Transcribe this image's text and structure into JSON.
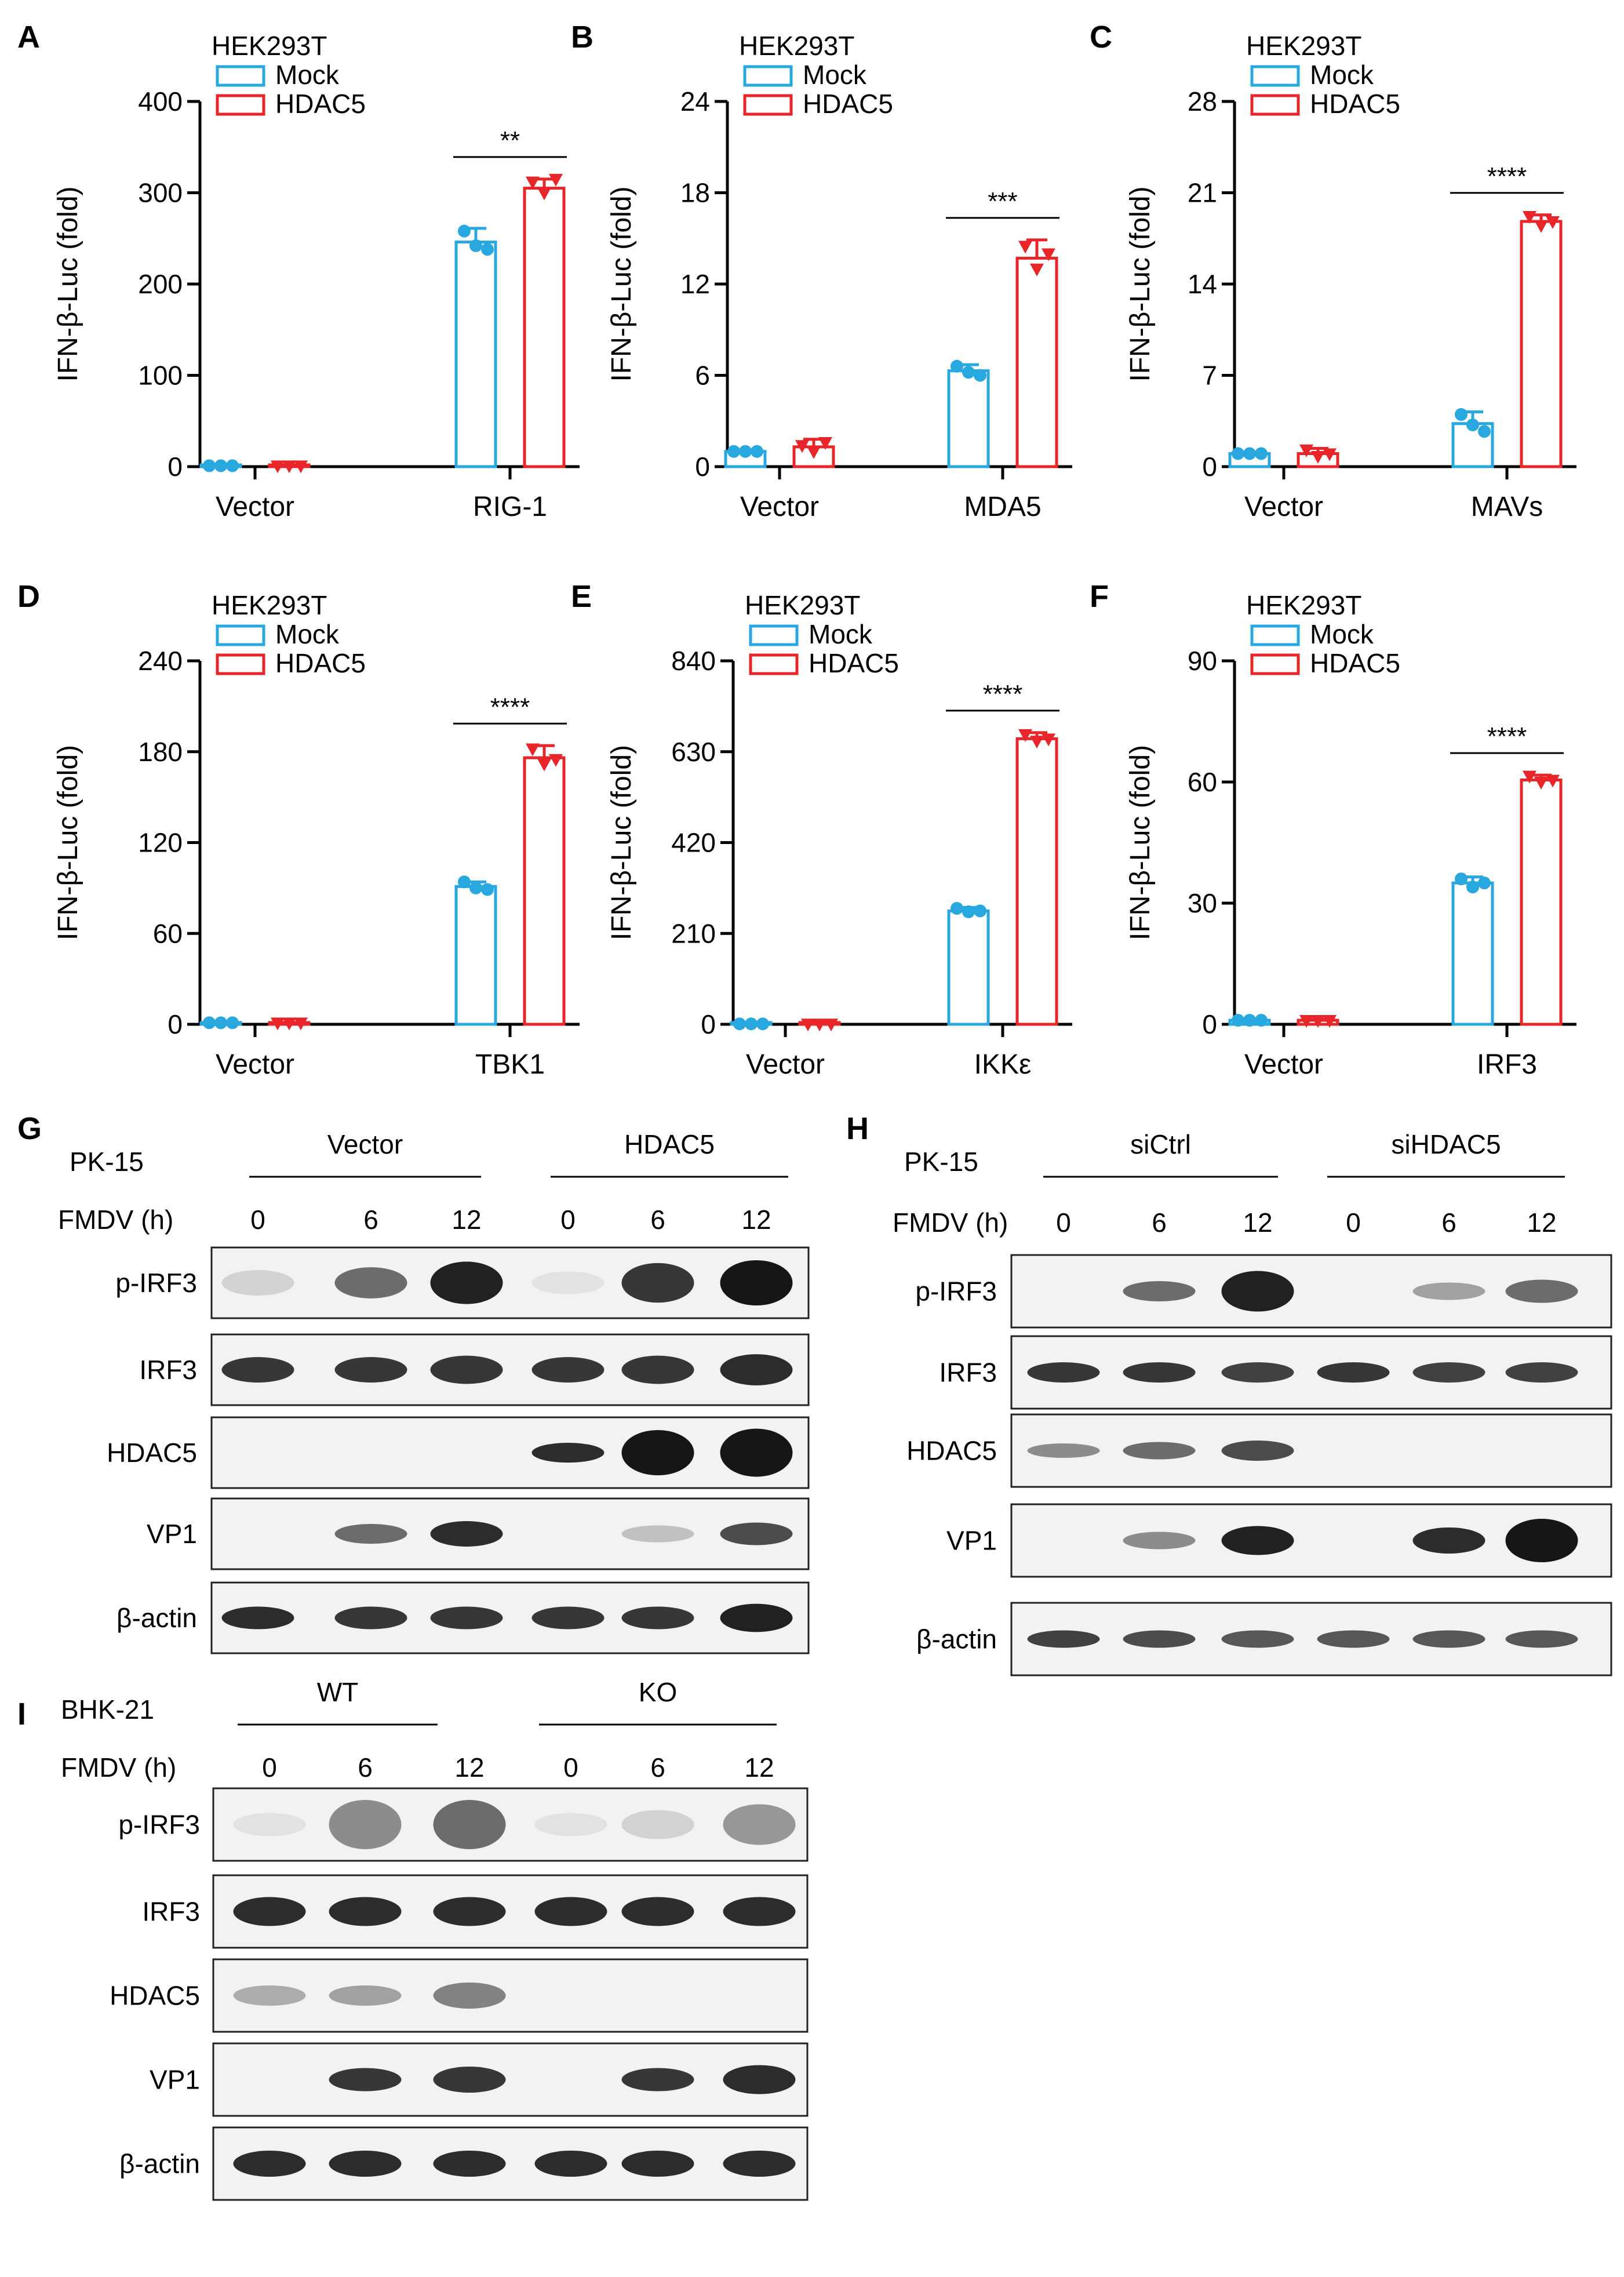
{
  "legend": {
    "header": "HEK293T",
    "mock": "Mock",
    "hdac5": "HDAC5"
  },
  "colors": {
    "mock": "#29A8E0",
    "hdac5": "#E8262A",
    "axis": "#000000"
  },
  "chart_data": [
    {
      "panel": "A",
      "type": "bar",
      "ylabel": "IFN-β-Luc (fold)",
      "categories": [
        "Vector",
        "RIG-1"
      ],
      "yticks": [
        "0",
        "100",
        "200",
        "300",
        "400"
      ],
      "ylim": [
        0,
        400
      ],
      "legend_title": "HEK293T",
      "series": [
        {
          "name": "Mock",
          "values": [
            1,
            246
          ],
          "errors": [
            0,
            15
          ],
          "points": [
            [
              1,
              1,
              1
            ],
            [
              258,
              242,
              238
            ]
          ]
        },
        {
          "name": "HDAC5",
          "values": [
            1,
            305
          ],
          "errors": [
            0,
            10
          ],
          "points": [
            [
              1,
              1,
              1
            ],
            [
              312,
              300,
              315
            ]
          ]
        }
      ],
      "significance": "**"
    },
    {
      "panel": "B",
      "type": "bar",
      "ylabel": "IFN-β-Luc (fold)",
      "categories": [
        "Vector",
        "MDA5"
      ],
      "yticks": [
        "0",
        "6",
        "12",
        "18",
        "24"
      ],
      "ylim": [
        0,
        24
      ],
      "legend_title": "HEK293T",
      "series": [
        {
          "name": "Mock",
          "values": [
            1,
            6.3
          ],
          "errors": [
            0.1,
            0.4
          ],
          "points": [
            [
              1,
              1,
              1
            ],
            [
              6.6,
              6.2,
              6.0
            ]
          ]
        },
        {
          "name": "HDAC5",
          "values": [
            1.3,
            13.7
          ],
          "errors": [
            0.5,
            1.2
          ],
          "points": [
            [
              1.4,
              1.0,
              1.6
            ],
            [
              14.5,
              13.0,
              14.0
            ]
          ]
        }
      ],
      "significance": "***"
    },
    {
      "panel": "C",
      "type": "bar",
      "ylabel": "IFN-β-Luc (fold)",
      "categories": [
        "Vector",
        "MAVs"
      ],
      "yticks": [
        "0",
        "7",
        "14",
        "21",
        "28"
      ],
      "ylim": [
        0,
        28
      ],
      "legend_title": "HEK293T",
      "series": [
        {
          "name": "Mock",
          "values": [
            1,
            3.3
          ],
          "errors": [
            0.1,
            0.9
          ],
          "points": [
            [
              1,
              1,
              1
            ],
            [
              4.0,
              3.2,
              2.7
            ]
          ]
        },
        {
          "name": "HDAC5",
          "values": [
            1,
            18.8
          ],
          "errors": [
            0.4,
            0.5
          ],
          "points": [
            [
              1.3,
              0.8,
              1.0
            ],
            [
              19.2,
              18.5,
              18.8
            ]
          ]
        }
      ],
      "significance": "****"
    },
    {
      "panel": "D",
      "type": "bar",
      "ylabel": "IFN-β-Luc (fold)",
      "categories": [
        "Vector",
        "TBK1"
      ],
      "yticks": [
        "0",
        "60",
        "120",
        "180",
        "240"
      ],
      "ylim": [
        0,
        240
      ],
      "legend_title": "HEK293T",
      "series": [
        {
          "name": "Mock",
          "values": [
            1,
            91
          ],
          "errors": [
            0,
            3
          ],
          "points": [
            [
              1,
              1,
              1
            ],
            [
              94,
              90,
              89
            ]
          ]
        },
        {
          "name": "HDAC5",
          "values": [
            1,
            176
          ],
          "errors": [
            0,
            8
          ],
          "points": [
            [
              1,
              1,
              1
            ],
            [
              182,
              172,
              175
            ]
          ]
        }
      ],
      "significance": "****"
    },
    {
      "panel": "E",
      "type": "bar",
      "ylabel": "IFN-β-Luc (fold)",
      "categories": [
        "Vector",
        "IKKε"
      ],
      "yticks": [
        "0",
        "210",
        "420",
        "630",
        "840"
      ],
      "ylim": [
        0,
        840
      ],
      "legend_title": "HEK293T",
      "series": [
        {
          "name": "Mock",
          "values": [
            1,
            262
          ],
          "errors": [
            0,
            8
          ],
          "points": [
            [
              1,
              1,
              1
            ],
            [
              268,
              260,
              262
            ]
          ]
        },
        {
          "name": "HDAC5",
          "values": [
            1,
            660
          ],
          "errors": [
            0,
            14
          ],
          "points": [
            [
              1,
              1,
              1
            ],
            [
              670,
              655,
              660
            ]
          ]
        }
      ],
      "significance": "****"
    },
    {
      "panel": "F",
      "type": "bar",
      "ylabel": "IFN-β-Luc (fold)",
      "categories": [
        "Vector",
        "IRF3"
      ],
      "yticks": [
        "0",
        "30",
        "60",
        "90"
      ],
      "ylim": [
        0,
        90
      ],
      "legend_title": "HEK293T",
      "series": [
        {
          "name": "Mock",
          "values": [
            1,
            35
          ],
          "errors": [
            0.2,
            1.5
          ],
          "points": [
            [
              1,
              1,
              1
            ],
            [
              36,
              34,
              35
            ]
          ]
        },
        {
          "name": "HDAC5",
          "values": [
            1,
            60.5
          ],
          "errors": [
            0.2,
            1.2
          ],
          "points": [
            [
              1,
              1,
              1
            ],
            [
              61.5,
              60,
              60.5
            ]
          ]
        }
      ],
      "significance": "****"
    }
  ],
  "blots": [
    {
      "panel": "G",
      "cell": "PK-15",
      "group1": "Vector",
      "group2": "HDAC5",
      "fmdv_label": "FMDV (h)",
      "times": [
        "0",
        "6",
        "12",
        "0",
        "6",
        "12"
      ],
      "rows": [
        {
          "label": "p-IRF3",
          "intensities": [
            0.12,
            0.6,
            0.95,
            0.05,
            0.85,
            1.0
          ],
          "heights": [
            0.45,
            0.55,
            0.75,
            0.4,
            0.7,
            0.8
          ]
        },
        {
          "label": "IRF3",
          "intensities": [
            0.85,
            0.85,
            0.85,
            0.85,
            0.85,
            0.9
          ],
          "heights": [
            0.45,
            0.45,
            0.5,
            0.45,
            0.5,
            0.55
          ]
        },
        {
          "label": "HDAC5",
          "intensities": [
            0,
            0,
            0,
            0.9,
            1.0,
            1.0
          ],
          "heights": [
            0.3,
            0.3,
            0.3,
            0.35,
            0.8,
            0.85
          ]
        },
        {
          "label": "VP1",
          "intensities": [
            0,
            0.6,
            0.9,
            0,
            0.2,
            0.75
          ],
          "heights": [
            0.3,
            0.35,
            0.45,
            0.3,
            0.3,
            0.4
          ]
        },
        {
          "label": "β-actin",
          "intensities": [
            0.9,
            0.85,
            0.85,
            0.85,
            0.85,
            0.95
          ],
          "heights": [
            0.4,
            0.4,
            0.4,
            0.4,
            0.4,
            0.5
          ]
        }
      ]
    },
    {
      "panel": "H",
      "cell": "PK-15",
      "group1": "siCtrl",
      "group2": "siHDAC5",
      "fmdv_label": "FMDV (h)",
      "times": [
        "0",
        "6",
        "12",
        "0",
        "6",
        "12"
      ],
      "rows": [
        {
          "label": "p-IRF3",
          "intensities": [
            0,
            0.6,
            0.95,
            0,
            0.35,
            0.6
          ],
          "heights": [
            0.3,
            0.35,
            0.7,
            0.3,
            0.3,
            0.4
          ]
        },
        {
          "label": "IRF3",
          "intensities": [
            0.85,
            0.85,
            0.8,
            0.85,
            0.8,
            0.8
          ],
          "heights": [
            0.35,
            0.35,
            0.35,
            0.35,
            0.35,
            0.35
          ]
        },
        {
          "label": "HDAC5",
          "intensities": [
            0.45,
            0.6,
            0.75,
            0,
            0,
            0
          ],
          "heights": [
            0.25,
            0.3,
            0.35,
            0.25,
            0.25,
            0.25
          ]
        },
        {
          "label": "VP1",
          "intensities": [
            0,
            0.45,
            0.95,
            0,
            0.9,
            1.0
          ],
          "heights": [
            0.3,
            0.3,
            0.5,
            0.3,
            0.45,
            0.75
          ]
        },
        {
          "label": "β-actin",
          "intensities": [
            0.8,
            0.75,
            0.7,
            0.7,
            0.7,
            0.7
          ],
          "heights": [
            0.3,
            0.3,
            0.3,
            0.3,
            0.3,
            0.3
          ]
        }
      ]
    },
    {
      "panel": "I",
      "cell": "BHK-21",
      "group1": "WT",
      "group2": "KO",
      "fmdv_label": "FMDV (h)",
      "times": [
        "0",
        "6",
        "12",
        "0",
        "6",
        "12"
      ],
      "rows": [
        {
          "label": "p-IRF3",
          "intensities": [
            0.05,
            0.45,
            0.6,
            0.05,
            0.12,
            0.4
          ],
          "heights": [
            0.4,
            0.85,
            0.85,
            0.4,
            0.5,
            0.7
          ]
        },
        {
          "label": "IRF3",
          "intensities": [
            0.9,
            0.9,
            0.9,
            0.9,
            0.9,
            0.9
          ],
          "heights": [
            0.5,
            0.5,
            0.5,
            0.5,
            0.5,
            0.5
          ]
        },
        {
          "label": "HDAC5",
          "intensities": [
            0.3,
            0.35,
            0.5,
            0,
            0,
            0
          ],
          "heights": [
            0.35,
            0.35,
            0.45,
            0.3,
            0.3,
            0.3
          ]
        },
        {
          "label": "VP1",
          "intensities": [
            0,
            0.85,
            0.85,
            0,
            0.85,
            0.9
          ],
          "heights": [
            0.3,
            0.4,
            0.45,
            0.3,
            0.4,
            0.5
          ]
        },
        {
          "label": "β-actin",
          "intensities": [
            0.9,
            0.9,
            0.9,
            0.9,
            0.9,
            0.9
          ],
          "heights": [
            0.45,
            0.45,
            0.45,
            0.45,
            0.45,
            0.45
          ]
        }
      ]
    }
  ]
}
